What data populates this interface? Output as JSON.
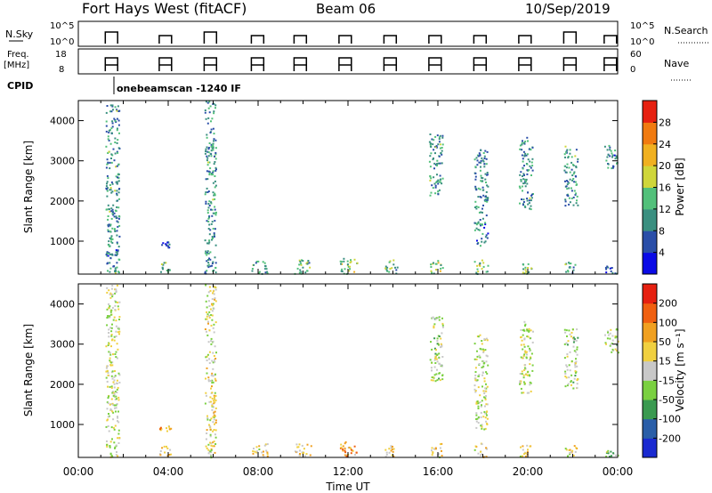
{
  "header": {
    "station": "Fort Hays West (fitACF)",
    "beam": "Beam 06",
    "date": "10/Sep/2019"
  },
  "ancillary": {
    "nsky_label": "N.Sky",
    "nsky_ticks": [
      "10^5",
      "10^0"
    ],
    "nsearch_label": "N.Search",
    "nsearch_ticks": [
      "10^5",
      "10^0"
    ],
    "freq_label_line1": "Freq.",
    "freq_label_line2": "[MHz]",
    "freq_ticks": [
      "18",
      "8"
    ],
    "nave_label": "Nave",
    "nave_ticks": [
      "60",
      "0"
    ],
    "cpid_label": "CPID",
    "cpid_text": "onebeamscan -1240 IF"
  },
  "chart_data": [
    {
      "type": "heatmap",
      "panel": "power",
      "ylabel": "Slant Range [km]",
      "ylim": [
        180,
        4500
      ],
      "yticks": [
        1000,
        2000,
        3000,
        4000
      ],
      "xlabel": "Time UT",
      "xlim_hours": [
        0,
        24
      ],
      "xtick_labels": [
        "00:00",
        "04:00",
        "08:00",
        "12:00",
        "16:00",
        "20:00",
        "00:00"
      ],
      "colorbar": {
        "label": "Power [dB]",
        "range": [
          0,
          32
        ],
        "tick_values": [
          4,
          8,
          12,
          16,
          20,
          24,
          28
        ],
        "tick_labels": [
          "4",
          "8",
          "12",
          "16",
          "20",
          "24",
          "28"
        ],
        "colors": [
          "#0a0ae6",
          "#2a4ea8",
          "#3a8f80",
          "#52c07a",
          "#cfd63a",
          "#f0b020",
          "#f07a10",
          "#e62010"
        ]
      },
      "echo_regions": [
        {
          "t": [
            1.2,
            1.8
          ],
          "r": [
            200,
            4500
          ],
          "level": 0.3
        },
        {
          "t": [
            1.2,
            1.8
          ],
          "r": [
            650,
            800
          ],
          "level": 0.15
        },
        {
          "t": [
            3.6,
            4.1
          ],
          "r": [
            200,
            500
          ],
          "level": 0.4
        },
        {
          "t": [
            3.6,
            4.1
          ],
          "r": [
            850,
            1000
          ],
          "level": 0.1
        },
        {
          "t": [
            5.6,
            6.1
          ],
          "r": [
            200,
            4500
          ],
          "level": 0.3
        },
        {
          "t": [
            7.7,
            8.4
          ],
          "r": [
            200,
            550
          ],
          "level": 0.35
        },
        {
          "t": [
            9.6,
            10.4
          ],
          "r": [
            200,
            550
          ],
          "level": 0.4
        },
        {
          "t": [
            11.6,
            12.4
          ],
          "r": [
            200,
            600
          ],
          "level": 0.45
        },
        {
          "t": [
            13.6,
            14.2
          ],
          "r": [
            200,
            550
          ],
          "level": 0.4
        },
        {
          "t": [
            15.6,
            16.2
          ],
          "r": [
            200,
            550
          ],
          "level": 0.5
        },
        {
          "t": [
            15.6,
            16.2
          ],
          "r": [
            2100,
            3700
          ],
          "level": 0.3
        },
        {
          "t": [
            17.6,
            18.2
          ],
          "r": [
            200,
            550
          ],
          "level": 0.45
        },
        {
          "t": [
            17.6,
            18.2
          ],
          "r": [
            900,
            3300
          ],
          "level": 0.25
        },
        {
          "t": [
            19.6,
            20.2
          ],
          "r": [
            200,
            500
          ],
          "level": 0.4
        },
        {
          "t": [
            19.6,
            20.2
          ],
          "r": [
            1800,
            3600
          ],
          "level": 0.3
        },
        {
          "t": [
            21.6,
            22.2
          ],
          "r": [
            200,
            500
          ],
          "level": 0.35
        },
        {
          "t": [
            21.6,
            22.2
          ],
          "r": [
            1900,
            3400
          ],
          "level": 0.3
        },
        {
          "t": [
            23.4,
            24.0
          ],
          "r": [
            2800,
            3400
          ],
          "level": 0.25
        },
        {
          "t": [
            23.4,
            24.0
          ],
          "r": [
            200,
            400
          ],
          "level": 0.15
        }
      ]
    },
    {
      "type": "heatmap",
      "panel": "velocity",
      "ylabel": "Slant Range [km]",
      "ylim": [
        180,
        4500
      ],
      "yticks": [
        1000,
        2000,
        3000,
        4000
      ],
      "xlabel": "Time UT",
      "xlim_hours": [
        0,
        24
      ],
      "xtick_labels": [
        "00:00",
        "04:00",
        "08:00",
        "12:00",
        "16:00",
        "20:00",
        "00:00"
      ],
      "colorbar": {
        "label": "Velocity [m s⁻¹]",
        "tick_labels": [
          "200",
          "100",
          "50",
          "15",
          "-15",
          "-50",
          "-100",
          "-200"
        ],
        "colors": [
          "#1a2ad0",
          "#2a5ea8",
          "#3a9a50",
          "#7ad040",
          "#c8c8c8",
          "#f0d040",
          "#f0a020",
          "#f06010",
          "#e62010"
        ]
      },
      "echo_regions": [
        {
          "t": [
            1.2,
            1.8
          ],
          "r": [
            200,
            4500
          ],
          "level": 0.5
        },
        {
          "t": [
            3.6,
            4.1
          ],
          "r": [
            200,
            500
          ],
          "level": 0.65
        },
        {
          "t": [
            3.6,
            4.1
          ],
          "r": [
            850,
            1000
          ],
          "level": 0.7
        },
        {
          "t": [
            5.6,
            6.1
          ],
          "r": [
            200,
            4500
          ],
          "level": 0.55
        },
        {
          "t": [
            7.7,
            8.4
          ],
          "r": [
            200,
            550
          ],
          "level": 0.6
        },
        {
          "t": [
            9.6,
            10.4
          ],
          "r": [
            200,
            550
          ],
          "level": 0.62
        },
        {
          "t": [
            11.6,
            12.4
          ],
          "r": [
            200,
            600
          ],
          "level": 0.72
        },
        {
          "t": [
            13.6,
            14.2
          ],
          "r": [
            200,
            550
          ],
          "level": 0.6
        },
        {
          "t": [
            15.6,
            16.2
          ],
          "r": [
            200,
            550
          ],
          "level": 0.6
        },
        {
          "t": [
            15.6,
            16.2
          ],
          "r": [
            2100,
            3700
          ],
          "level": 0.45
        },
        {
          "t": [
            17.6,
            18.2
          ],
          "r": [
            200,
            550
          ],
          "level": 0.6
        },
        {
          "t": [
            17.6,
            18.2
          ],
          "r": [
            900,
            3300
          ],
          "level": 0.5
        },
        {
          "t": [
            19.6,
            20.2
          ],
          "r": [
            200,
            500
          ],
          "level": 0.6
        },
        {
          "t": [
            19.6,
            20.2
          ],
          "r": [
            1800,
            3600
          ],
          "level": 0.5
        },
        {
          "t": [
            21.6,
            22.2
          ],
          "r": [
            200,
            500
          ],
          "level": 0.6
        },
        {
          "t": [
            21.6,
            22.2
          ],
          "r": [
            1900,
            3400
          ],
          "level": 0.45
        },
        {
          "t": [
            23.4,
            24.0
          ],
          "r": [
            2800,
            3400
          ],
          "level": 0.45
        },
        {
          "t": [
            23.4,
            24.0
          ],
          "r": [
            200,
            400
          ],
          "level": 0.4
        }
      ]
    }
  ]
}
